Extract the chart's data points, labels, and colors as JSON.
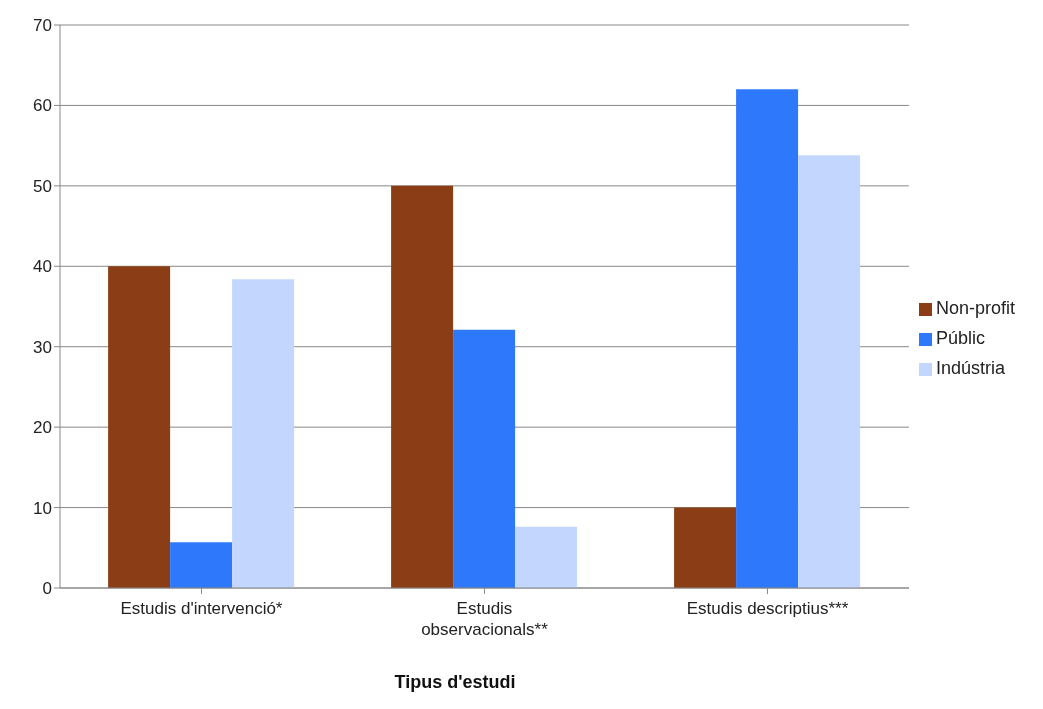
{
  "chart_data": {
    "type": "bar",
    "xlabel": "Tipus d'estudi",
    "categories": [
      "Estudis d'intervenció*",
      "Estudis observacionals**",
      "Estudis descriptius***"
    ],
    "series": [
      {
        "name": "Non-profit",
        "color": "#8b3e16",
        "values": [
          40,
          50,
          10
        ]
      },
      {
        "name": "Públic",
        "color": "#2e78fb",
        "values": [
          5.7,
          32.1,
          62
        ]
      },
      {
        "name": "Indústria",
        "color": "#c3d7fe",
        "values": [
          38.4,
          7.6,
          53.8
        ]
      }
    ],
    "ylim": [
      0,
      70
    ],
    "yticks": [
      0,
      10,
      20,
      30,
      40,
      50,
      60,
      70
    ],
    "grid": "y",
    "legend": "right"
  }
}
